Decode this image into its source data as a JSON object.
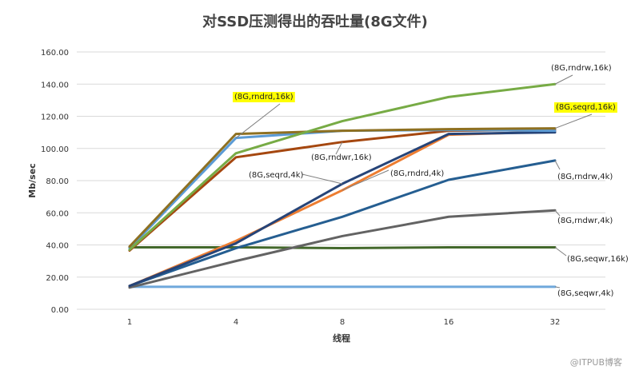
{
  "chart_data": {
    "type": "line",
    "title": "对SSD压测得出的吞吐量(8G文件)",
    "xlabel": "线程",
    "ylabel": "Mb/sec",
    "categories": [
      "1",
      "4",
      "8",
      "16",
      "32"
    ],
    "ylim": [
      0,
      160
    ],
    "yticks": [
      "0.00",
      "20.00",
      "40.00",
      "60.00",
      "80.00",
      "100.00",
      "120.00",
      "140.00",
      "160.00"
    ],
    "grid": true,
    "series": [
      {
        "name": "(8G,rndrw,16k)",
        "color": "#77ab45",
        "values": [
          37,
          97,
          117,
          132,
          140
        ]
      },
      {
        "name": "(8G,seqrd,16k)",
        "color": "#8e7021",
        "values": [
          39,
          109,
          111,
          112,
          112.5
        ]
      },
      {
        "name": "(8G,rndrd,16k)",
        "color": "#5b9bd5",
        "values": [
          38,
          106.5,
          111,
          111.5,
          111
        ]
      },
      {
        "name": "(8G,rndwr,16k)",
        "color": "#a5470f",
        "values": [
          36.5,
          94.5,
          104,
          111,
          111.5
        ]
      },
      {
        "name": "(8G,seqrd,4k)",
        "color": "#264478",
        "values": [
          14.5,
          41,
          78,
          109,
          110
        ]
      },
      {
        "name": "(8G,rndrd,4k)",
        "color": "#ed7d31",
        "values": [
          14.5,
          42.5,
          74,
          108.5,
          110.5
        ]
      },
      {
        "name": "(8G,rndrw,4k)",
        "color": "#255e91",
        "values": [
          14.5,
          38,
          57.5,
          80.5,
          92.5
        ]
      },
      {
        "name": "(8G,rndwr,4k)",
        "color": "#636363",
        "values": [
          13.5,
          30,
          45.5,
          57.5,
          61.5
        ]
      },
      {
        "name": "(8G,seqwr,16k)",
        "color": "#43682b",
        "values": [
          38.5,
          38.5,
          38,
          38.5,
          38.5
        ]
      },
      {
        "name": "(8G,seqwr,4k)",
        "color": "#6fa8dc",
        "values": [
          14,
          14,
          14,
          14,
          14
        ]
      }
    ],
    "annotations": [
      {
        "text": "(8G,rndrw,16k)",
        "series": 0,
        "point": 4,
        "highlight": false
      },
      {
        "text": "(8G,seqrd,16k)",
        "series": 1,
        "point": 4,
        "highlight": true
      },
      {
        "text": "(8G,rndrd,16k)",
        "series": 2,
        "point": 1,
        "highlight": true
      },
      {
        "text": "(8G,rndwr,16k)",
        "series": 3,
        "point": 2,
        "highlight": false
      },
      {
        "text": "(8G,seqrd,4k)",
        "series": 4,
        "point": 2,
        "highlight": false
      },
      {
        "text": "(8G,rndrd,4k)",
        "series": 5,
        "point": 2,
        "highlight": false
      },
      {
        "text": "(8G,rndrw,4k)",
        "series": 6,
        "point": 4,
        "highlight": false
      },
      {
        "text": "(8G,rndwr,4k)",
        "series": 7,
        "point": 4,
        "highlight": false
      },
      {
        "text": "(8G,seqwr,16k)",
        "series": 8,
        "point": 4,
        "highlight": false
      },
      {
        "text": "(8G,seqwr,4k)",
        "series": 9,
        "point": 4,
        "highlight": false
      }
    ]
  },
  "watermark": "@ITPUB博客"
}
